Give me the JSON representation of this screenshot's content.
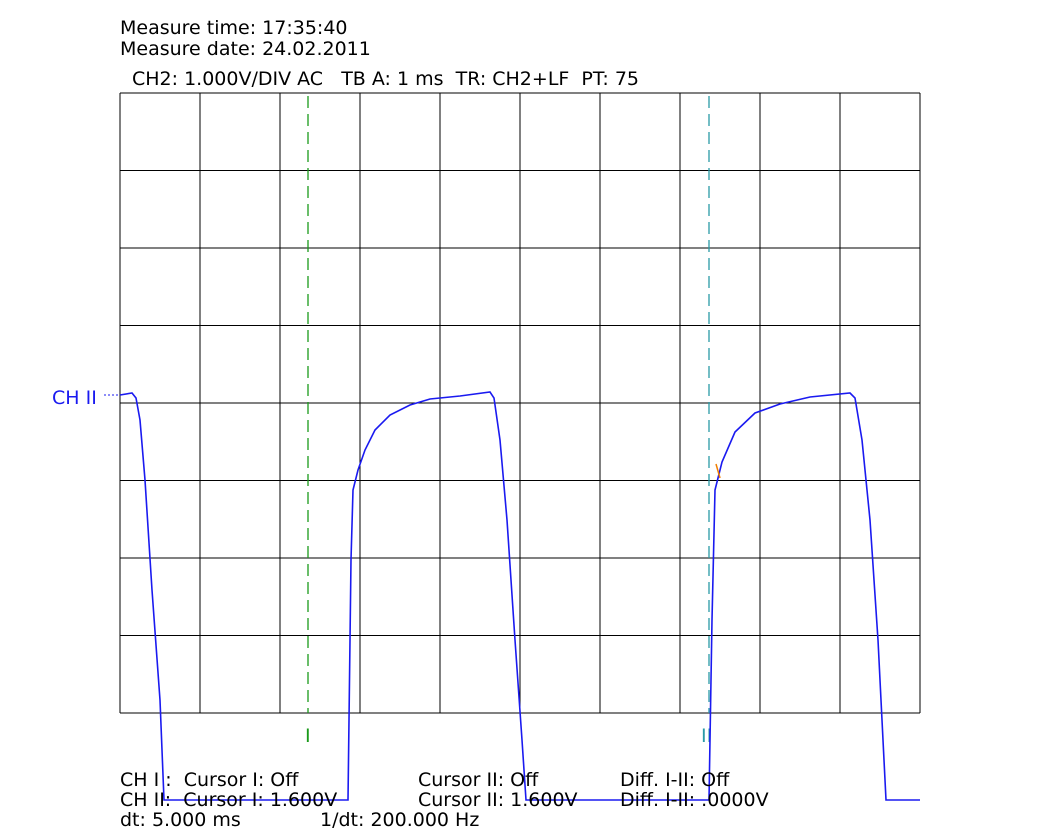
{
  "header": {
    "measure_time": "Measure time: 17:35:40",
    "measure_date": "Measure date: 24.02.2011",
    "settings": "CH2: 1.000V/DIV AC   TB A: 1 ms  TR: CH2+LF  PT: 75"
  },
  "screen": {
    "channel_label": "CH II",
    "cursor_1_marker": "I",
    "cursor_2_marker": "II"
  },
  "footer": {
    "rows": [
      [
        "CH I :  Cursor I: Off",
        "Cursor II: Off",
        "Diff. I-II: Off"
      ],
      [
        "CH II:  Cursor I: 1.600V",
        "Cursor II: 1.600V",
        "Diff. I-II: .0000V"
      ]
    ],
    "dt": "dt: 5.000 ms",
    "inverse_dt": "1/dt: 200.000 Hz"
  }
}
